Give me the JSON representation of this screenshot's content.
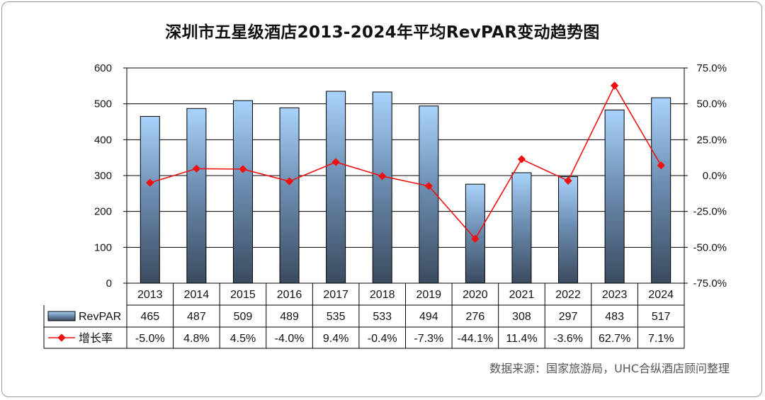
{
  "title": "深圳市五星级酒店2013-2024年平均RevPAR变动趋势图",
  "source": "数据来源：国家旅游局，UHC合纵酒店顾问整理",
  "colors": {
    "bar_top": "#a9d3fb",
    "bar_bottom": "#3b4b5f",
    "line": "#ee1111",
    "grid": "#000000"
  },
  "chart_data": {
    "type": "bar",
    "categories": [
      "2013",
      "2014",
      "2015",
      "2016",
      "2017",
      "2018",
      "2019",
      "2020",
      "2021",
      "2022",
      "2023",
      "2024"
    ],
    "series": [
      {
        "name": "RevPAR",
        "type": "bar",
        "axis": "left",
        "values": [
          465,
          487,
          509,
          489,
          535,
          533,
          494,
          276,
          308,
          297,
          483,
          517
        ]
      },
      {
        "name": "增长率",
        "type": "line",
        "axis": "right",
        "values": [
          -5.0,
          4.8,
          4.5,
          -4.0,
          9.4,
          -0.4,
          -7.3,
          -44.1,
          11.4,
          -3.6,
          62.7,
          7.1
        ]
      }
    ],
    "left_axis": {
      "ylim": [
        0,
        600
      ],
      "ticks": [
        "0",
        "100",
        "200",
        "300",
        "400",
        "500",
        "600"
      ]
    },
    "right_axis": {
      "ylim": [
        -75,
        75
      ],
      "ticks": [
        "-75.0%",
        "-50.0%",
        "-25.0%",
        "0.0%",
        "25.0%",
        "50.0%",
        "75.0%"
      ]
    },
    "table_rows": [
      {
        "label": "RevPAR",
        "cells": [
          "465",
          "487",
          "509",
          "489",
          "535",
          "533",
          "494",
          "276",
          "308",
          "297",
          "483",
          "517"
        ]
      },
      {
        "label": "增长率",
        "cells": [
          "-5.0%",
          "4.8%",
          "4.5%",
          "-4.0%",
          "9.4%",
          "-0.4%",
          "-7.3%",
          "-44.1%",
          "11.4%",
          "-3.6%",
          "62.7%",
          "7.1%"
        ]
      }
    ],
    "legend_placement": "data-table",
    "grid": true
  }
}
